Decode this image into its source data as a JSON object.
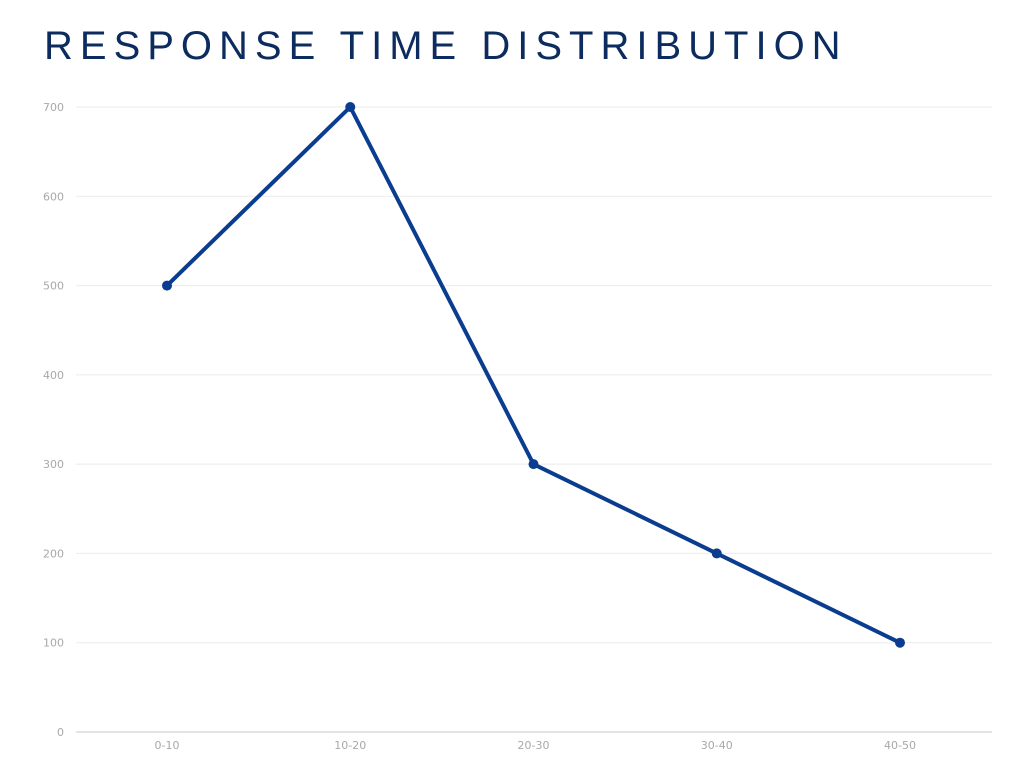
{
  "chart_data": {
    "type": "line",
    "title": "RESPONSE TIME DISTRIBUTION",
    "xlabel": "",
    "ylabel": "",
    "categories": [
      "0-10",
      "10-20",
      "20-30",
      "30-40",
      "40-50"
    ],
    "series": [
      {
        "values": [
          500,
          700,
          300,
          200,
          100
        ]
      }
    ],
    "ylim": [
      0,
      700
    ],
    "yticks": [
      0,
      100,
      200,
      300,
      400,
      500,
      600,
      700
    ],
    "grid": true,
    "legend": "none",
    "colors": {
      "line": "#0a3d8f",
      "grid": "#ebebeb",
      "axis": "#c8c8c8",
      "title": "#0c2b5e",
      "tick_text": "#a8a8a8"
    }
  }
}
